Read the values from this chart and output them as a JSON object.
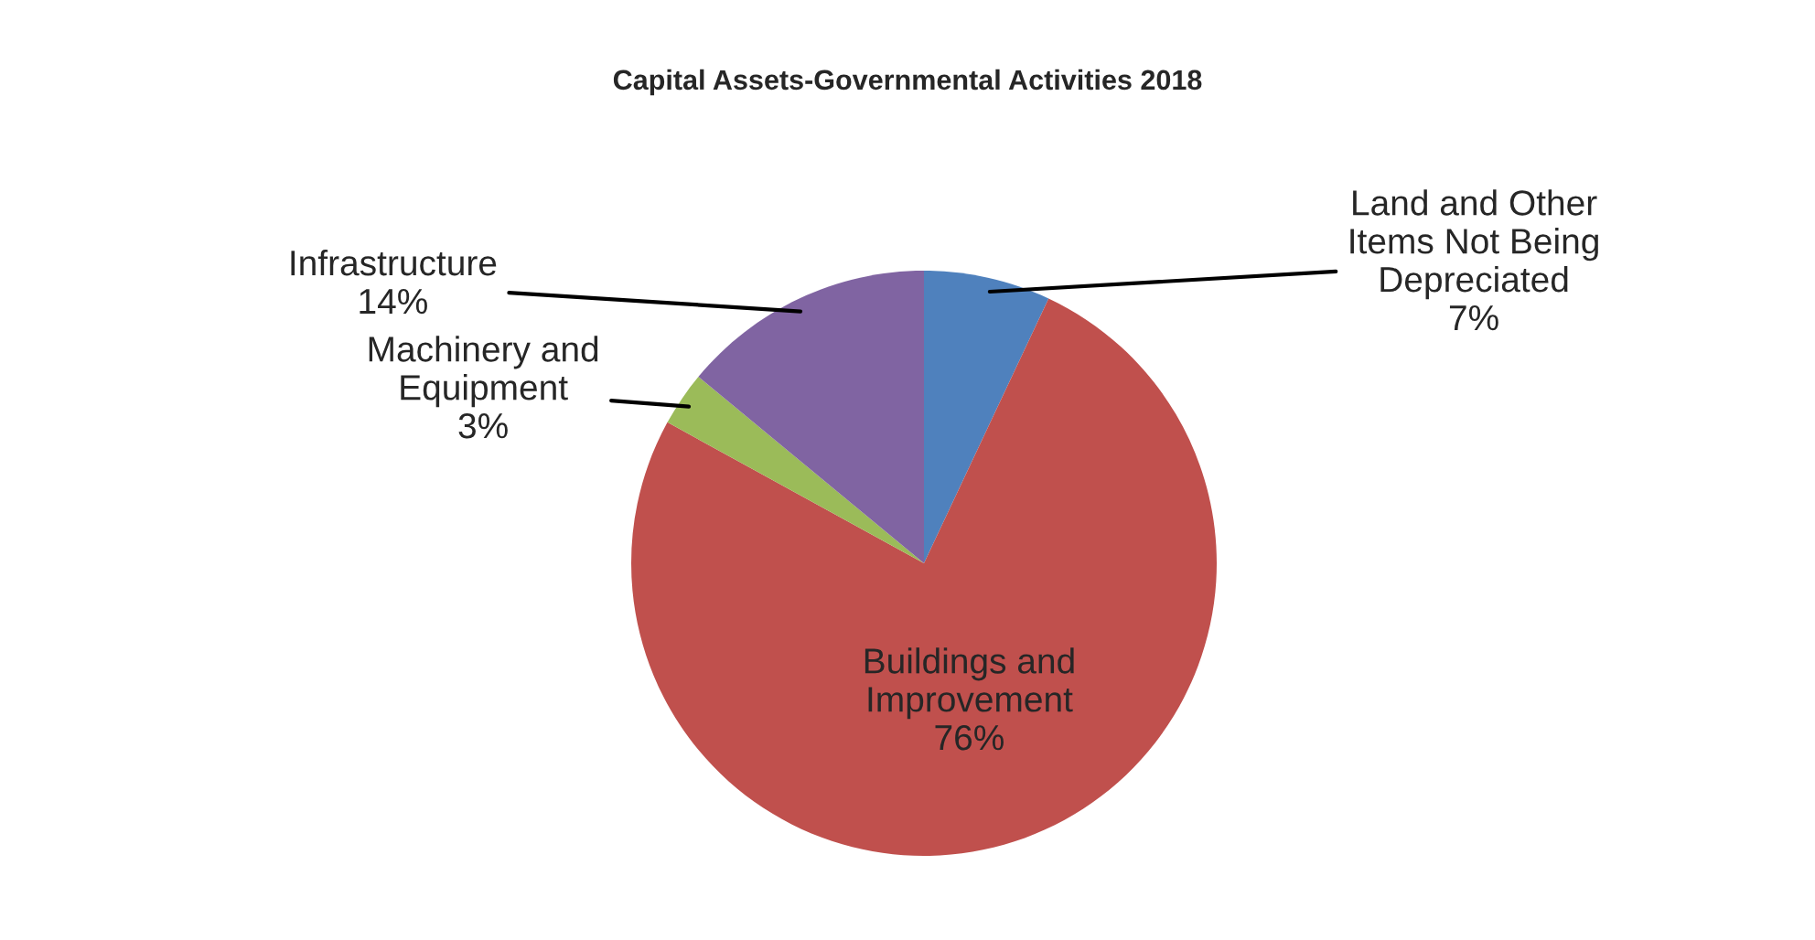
{
  "chart_data": {
    "type": "pie",
    "title": "Capital Assets-Governmental Activities 2018",
    "categories": [
      "Land and Other\nItems Not Being\nDepreciated",
      "Buildings and\nImprovement",
      "Machinery and\nEquipment",
      "Infrastructure"
    ],
    "values": [
      7,
      76,
      3,
      14
    ],
    "value_labels": [
      "7%",
      "76%",
      "3%",
      "14%"
    ],
    "colors": [
      "#4f81bd",
      "#c0504d",
      "#9bbb59",
      "#8064a2"
    ]
  }
}
